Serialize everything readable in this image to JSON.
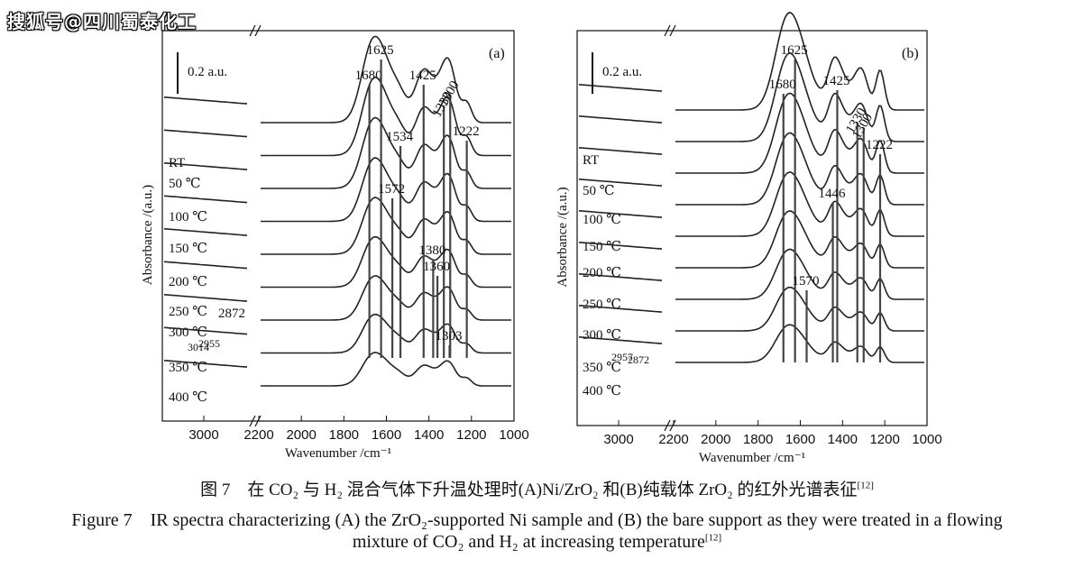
{
  "watermark": "搜狐号@四川蜀泰化工",
  "caption": {
    "cn": "图 7　在 CO₂ 与 H₂ 混合气体下升温处理时(A)Ni/ZrO₂ 和(B)纯载体 ZrO₂ 的红外光谱表征",
    "cn_ref": "[12]",
    "en_line1": "Figure 7　IR spectra characterizing (A) the ZrO₂-supported Ni sample and (B) the bare support as they were treated in a flowing",
    "en_line2": "mixture of CO₂ and H₂ at increasing temperature",
    "en_ref": "[12]"
  },
  "chart_data": [
    {
      "panel": "(a)",
      "type": "line",
      "xlabel": "Wavenumber /cm⁻¹",
      "ylabel": "Absorbance /(a.u.)",
      "scale_bar": "0.2 a.u.",
      "x_ticks": [
        "3000",
        "2200",
        "2000",
        "1800",
        "1600",
        "1400",
        "1200",
        "1000"
      ],
      "series": [
        {
          "name": "RT"
        },
        {
          "name": "50 ℃"
        },
        {
          "name": "100 ℃"
        },
        {
          "name": "150 ℃"
        },
        {
          "name": "200 ℃"
        },
        {
          "name": "250 ℃"
        },
        {
          "name": "300 ℃"
        },
        {
          "name": "350 ℃"
        },
        {
          "name": "400 ℃"
        }
      ],
      "peak_labels": [
        "1680",
        "1625",
        "1425",
        "1330",
        "1300",
        "1534",
        "1222",
        "1572",
        "1380",
        "1360",
        "1303",
        "2872",
        "3014",
        "2955"
      ]
    },
    {
      "panel": "(b)",
      "type": "line",
      "xlabel": "Wavenumber /cm⁻¹",
      "ylabel": "Absorbance /(a.u.)",
      "scale_bar": "0.2 a.u.",
      "x_ticks": [
        "3000",
        "2200",
        "2000",
        "1800",
        "1600",
        "1400",
        "1200",
        "1000"
      ],
      "series": [
        {
          "name": "RT"
        },
        {
          "name": "50 ℃"
        },
        {
          "name": "100 ℃"
        },
        {
          "name": "150 ℃"
        },
        {
          "name": "200 ℃"
        },
        {
          "name": "250 ℃"
        },
        {
          "name": "300 ℃"
        },
        {
          "name": "350 ℃"
        },
        {
          "name": "400 ℃"
        }
      ],
      "peak_labels": [
        "1625",
        "1680",
        "1425",
        "1330",
        "1300",
        "1222",
        "1446",
        "1570",
        "2957",
        "2872"
      ]
    }
  ]
}
